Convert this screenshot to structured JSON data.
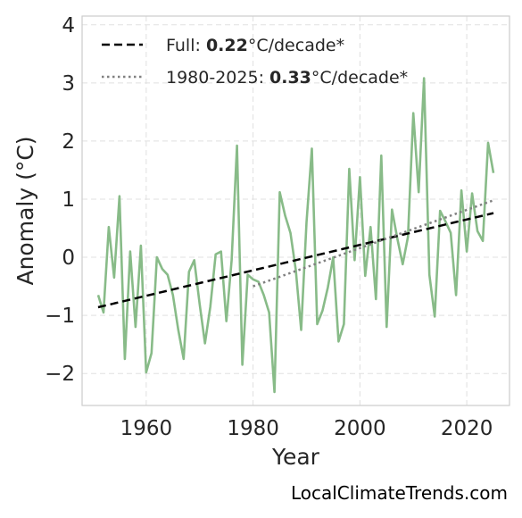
{
  "chart_data": {
    "type": "line",
    "xlabel": "Year",
    "ylabel": "Anomaly (°C)",
    "xlim": [
      1948,
      2028
    ],
    "ylim": [
      -2.55,
      4.15
    ],
    "xticks": [
      1960,
      1980,
      2000,
      2020
    ],
    "yticks": [
      -2,
      -1,
      0,
      1,
      2,
      3,
      4
    ],
    "ytick_labels": [
      "−2",
      "−1",
      "0",
      "1",
      "2",
      "3",
      "4"
    ],
    "grid": true,
    "legend_position": "top-left",
    "series": [
      {
        "color": "#88bb88",
        "x": [
          1951,
          1952,
          1953,
          1954,
          1955,
          1956,
          1957,
          1958,
          1959,
          1960,
          1961,
          1962,
          1963,
          1964,
          1965,
          1966,
          1967,
          1968,
          1969,
          1970,
          1971,
          1972,
          1973,
          1974,
          1975,
          1976,
          1977,
          1978,
          1979,
          1980,
          1981,
          1982,
          1983,
          1984,
          1985,
          1986,
          1987,
          1988,
          1989,
          1990,
          1991,
          1992,
          1993,
          1994,
          1995,
          1996,
          1997,
          1998,
          1999,
          2000,
          2001,
          2002,
          2003,
          2004,
          2005,
          2006,
          2007,
          2008,
          2009,
          2010,
          2011,
          2012,
          2013,
          2014,
          2015,
          2016,
          2017,
          2018,
          2019,
          2020,
          2021,
          2022,
          2023,
          2024,
          2025
        ],
        "y": [
          -0.65,
          -0.95,
          0.52,
          -0.35,
          1.05,
          -1.75,
          0.1,
          -1.2,
          0.2,
          -1.98,
          -1.65,
          0.0,
          -0.2,
          -0.3,
          -0.65,
          -1.25,
          -1.75,
          -0.25,
          -0.05,
          -0.8,
          -1.48,
          -0.85,
          0.05,
          0.1,
          -1.1,
          -0.05,
          1.92,
          -1.85,
          -0.3,
          -0.38,
          -0.42,
          -0.65,
          -0.95,
          -2.32,
          1.12,
          0.72,
          0.42,
          -0.22,
          -1.25,
          0.6,
          1.87,
          -1.15,
          -0.92,
          -0.52,
          0.0,
          -1.45,
          -1.15,
          1.52,
          -0.05,
          1.38,
          -0.32,
          0.52,
          -0.72,
          1.75,
          -1.2,
          0.82,
          0.32,
          -0.12,
          0.35,
          2.48,
          1.12,
          3.08,
          -0.3,
          -1.02,
          0.8,
          0.62,
          0.42,
          -0.65,
          1.15,
          0.1,
          1.1,
          0.45,
          0.28,
          1.97,
          1.45
        ]
      }
    ],
    "trend_lines": [
      {
        "style": "dashed",
        "color": "#000000",
        "x": [
          1951,
          2025
        ],
        "y": [
          -0.86,
          0.76
        ]
      },
      {
        "style": "dotted",
        "color": "#808080",
        "x": [
          1980,
          2025
        ],
        "y": [
          -0.5,
          0.98
        ]
      }
    ],
    "legend": [
      {
        "prefix": "Full: ",
        "value": "0.22",
        "suffix": "°C/decade*"
      },
      {
        "prefix": "1980-2025: ",
        "value": "0.33",
        "suffix": "°C/decade*"
      }
    ]
  },
  "credit": "LocalClimateTrends.com"
}
